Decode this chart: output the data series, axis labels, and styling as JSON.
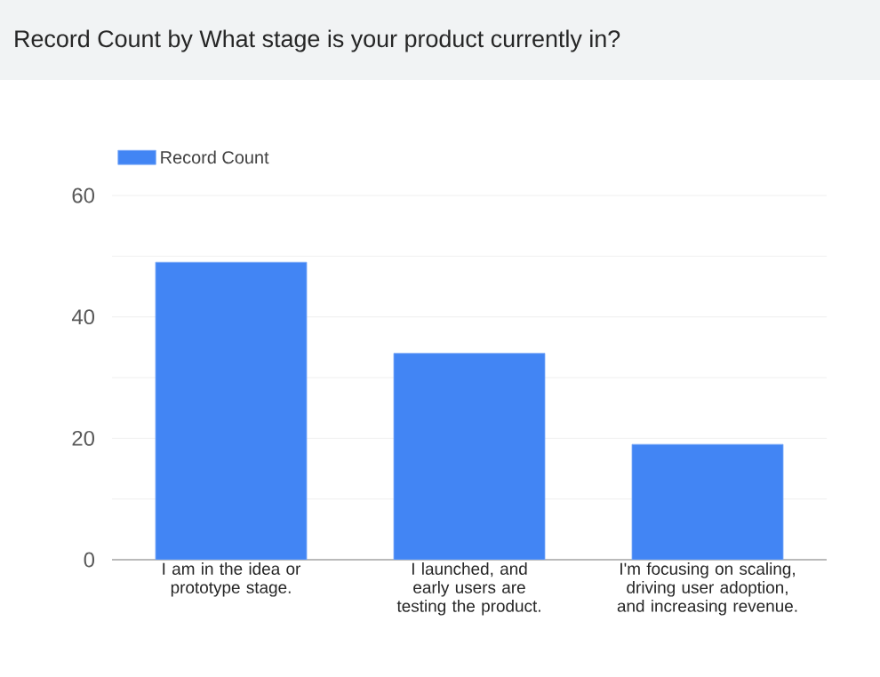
{
  "chart_data": {
    "type": "bar",
    "title": "Record Count by What stage is your product currently in?",
    "categories": [
      "I am in the idea or prototype stage.",
      "I launched, and early users are testing the product.",
      "I'm focusing on scaling, driving user adoption, and increasing revenue."
    ],
    "series": [
      {
        "name": "Record Count",
        "color": "#4285f4",
        "values": [
          49,
          34,
          19
        ]
      }
    ],
    "ylim": [
      0,
      60
    ],
    "yticks": [
      0,
      {
        "value": 10,
        "label": null
      },
      20,
      {
        "value": 30,
        "label": null
      },
      40,
      {
        "value": 50,
        "label": null
      },
      60
    ],
    "grid": "y",
    "legend": "top left"
  }
}
